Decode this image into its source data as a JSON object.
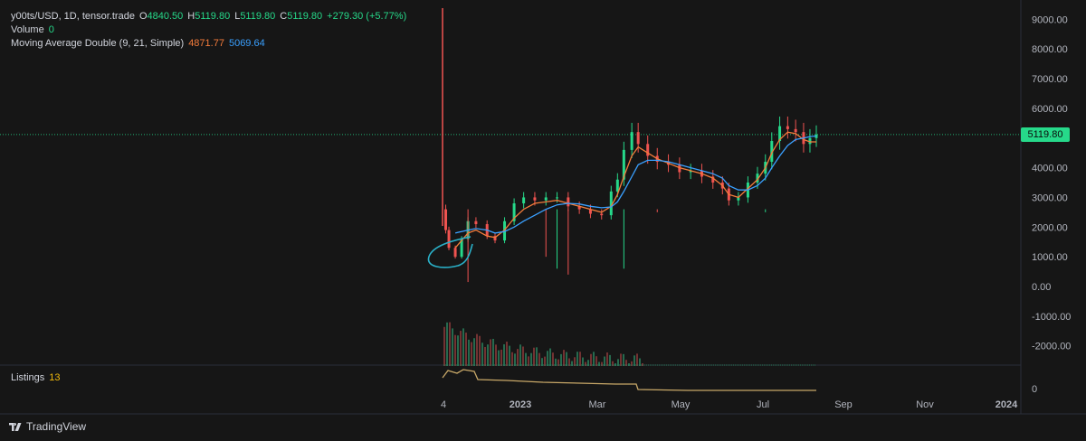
{
  "symbol": {
    "title": "y00ts/USD, 1D, tensor.trade",
    "open_label": "O",
    "open": "4840.50",
    "high_label": "H",
    "high": "5119.80",
    "low_label": "L",
    "low": "5119.80",
    "close_label": "C",
    "close": "5119.80",
    "change": "+279.30 (+5.77%)"
  },
  "volume": {
    "label": "Volume",
    "value": "0"
  },
  "moving_average": {
    "label": "Moving Average Double (9, 21, Simple)",
    "fast_value": "4871.77",
    "slow_value": "5069.64"
  },
  "listings": {
    "label": "Listings",
    "value": "13"
  },
  "price_axis": {
    "ticks": [
      "9000.00",
      "8000.00",
      "7000.00",
      "6000.00",
      "5000.00",
      "4000.00",
      "3000.00",
      "2000.00",
      "1000.00",
      "0.00",
      "-1000.00",
      "-2000.00"
    ],
    "current_price": "5119.80"
  },
  "listings_axis": {
    "tick": "0"
  },
  "time_axis": {
    "ticks": [
      "4",
      "2023",
      "Mar",
      "May",
      "Jul",
      "Sep",
      "Nov",
      "2024"
    ]
  },
  "branding": {
    "name": "TradingView"
  },
  "colors": {
    "background": "#161616",
    "up": "#26d98a",
    "down": "#ef5350",
    "ma_fast": "#f57c3b",
    "ma_slow": "#3aa0ff",
    "listings_line": "#c8a868",
    "annotation": "#2ab0c8"
  },
  "chart_data": {
    "type": "line",
    "title": "y00ts/USD, 1D, tensor.trade",
    "xlabel": "",
    "ylabel": "",
    "ylim": [
      -2300,
      9400
    ],
    "x": [
      "2022-12-04",
      "2022-12-06",
      "2022-12-08",
      "2022-12-12",
      "2022-12-16",
      "2022-12-20",
      "2022-12-25",
      "2023-01-01",
      "2023-01-06",
      "2023-01-12",
      "2023-01-18",
      "2023-01-24",
      "2023-01-31",
      "2023-02-07",
      "2023-02-14",
      "2023-02-21",
      "2023-02-28",
      "2023-03-07",
      "2023-03-14",
      "2023-03-20",
      "2023-03-24",
      "2023-03-28",
      "2023-04-02",
      "2023-04-06",
      "2023-04-12",
      "2023-04-18",
      "2023-04-25",
      "2023-05-02",
      "2023-05-09",
      "2023-05-16",
      "2023-05-23",
      "2023-05-29",
      "2023-06-02",
      "2023-06-08",
      "2023-06-14",
      "2023-06-20",
      "2023-06-25",
      "2023-06-29",
      "2023-07-04",
      "2023-07-09",
      "2023-07-14",
      "2023-07-19",
      "2023-07-23",
      "2023-07-27"
    ],
    "series": [
      {
        "name": "y00ts/USD",
        "values": [
          2600,
          1900,
          1300,
          1000,
          1600,
          2200,
          2100,
          1700,
          1550,
          2200,
          2800,
          3000,
          2900,
          3000,
          3000,
          2700,
          2600,
          2450,
          2400,
          3200,
          3600,
          4600,
          5200,
          4800,
          4400,
          4200,
          4100,
          3850,
          3900,
          3700,
          3500,
          3300,
          2900,
          3000,
          3500,
          3800,
          4200,
          4900,
          5400,
          5300,
          5200,
          4800,
          5000,
          5120
        ]
      },
      {
        "name": "Moving Average Double (9, 21, Simple)",
        "values": [
          null,
          null,
          null,
          1300,
          1550,
          1800,
          1900,
          1700,
          1650,
          1900,
          2300,
          2600,
          2800,
          2850,
          2900,
          2800,
          2700,
          2600,
          2500,
          2700,
          3100,
          3700,
          4400,
          4700,
          4500,
          4300,
          4150,
          4000,
          3900,
          3800,
          3650,
          3400,
          3100,
          3000,
          3300,
          3600,
          4000,
          4500,
          4950,
          5200,
          5150,
          4950,
          4870,
          4872
        ]
      },
      {
        "name": "Moving Average Double (9, 21, Simple)",
        "values": [
          null,
          null,
          null,
          1800,
          1850,
          1900,
          1950,
          1900,
          1800,
          1850,
          2000,
          2200,
          2400,
          2600,
          2750,
          2800,
          2780,
          2700,
          2650,
          2680,
          2850,
          3200,
          3700,
          4100,
          4250,
          4250,
          4200,
          4100,
          4000,
          3900,
          3800,
          3650,
          3400,
          3250,
          3250,
          3400,
          3650,
          4000,
          4400,
          4750,
          4950,
          5000,
          5050,
          5070
        ]
      }
    ]
  }
}
